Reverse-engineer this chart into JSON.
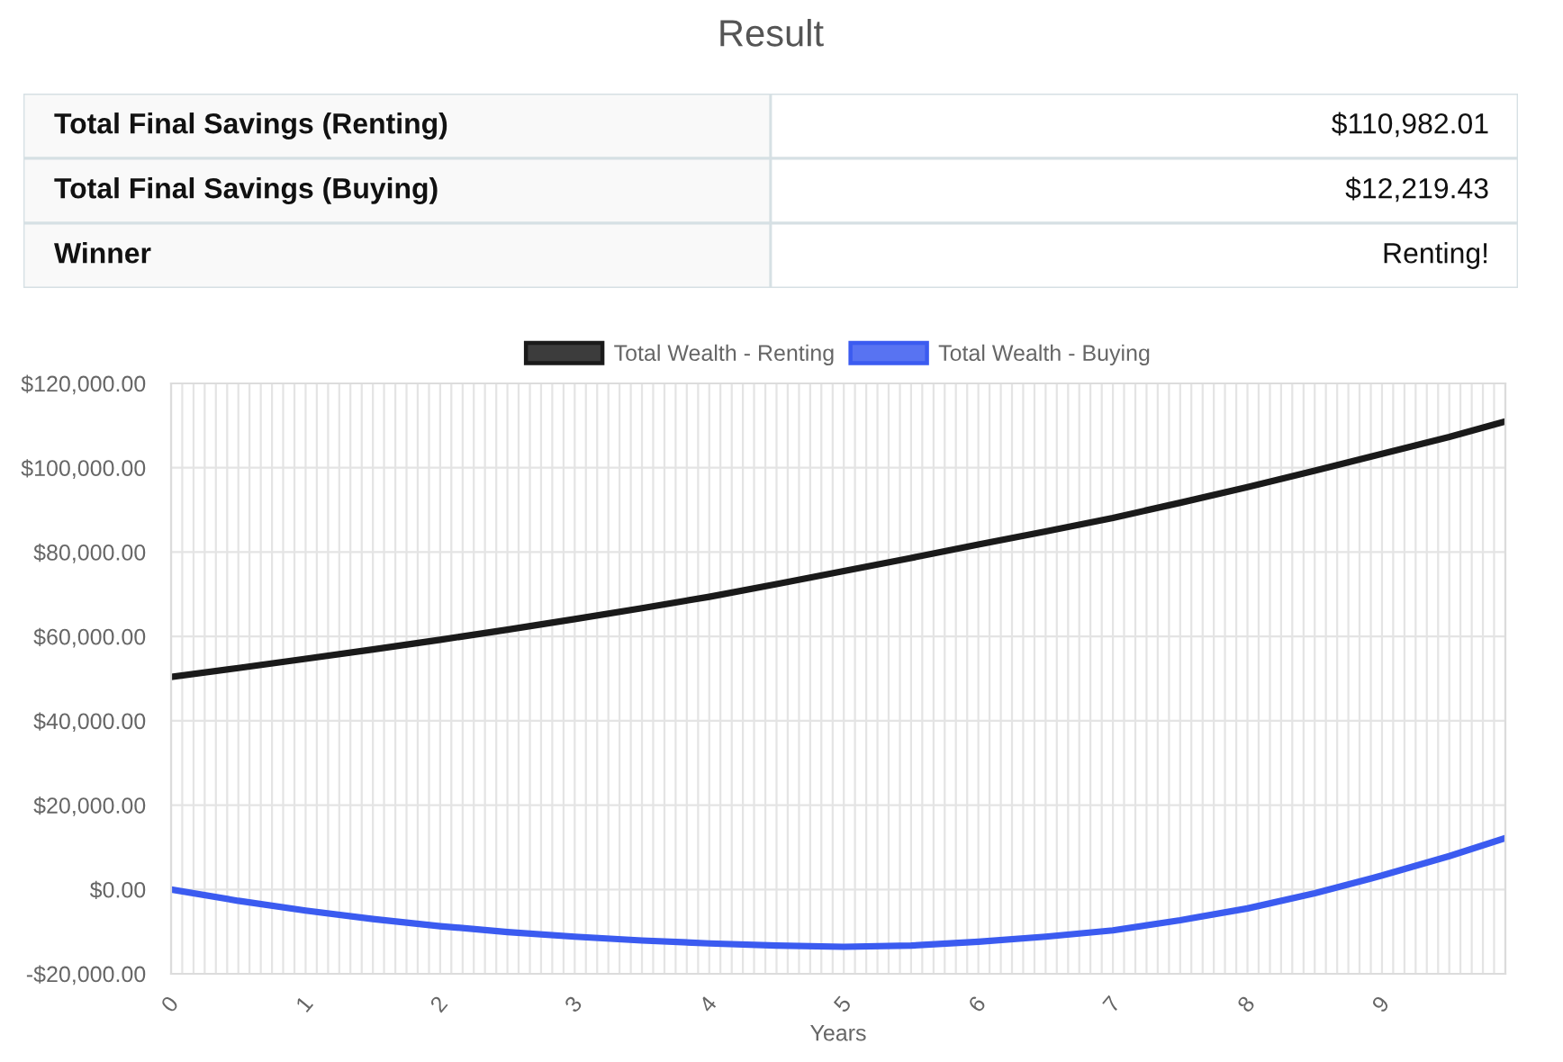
{
  "chart_data": [
    {
      "type": "other",
      "title": "Result",
      "annotations": [
        "Total Final Savings (Renting)",
        "$110,982.01",
        "Total Final Savings (Buying)",
        "$12,219.43",
        "Winner",
        "Renting!"
      ]
    },
    {
      "type": "line",
      "xlabel": "Years",
      "line_style": "solid",
      "grid": true,
      "legend": "top",
      "x": [
        0,
        0.5,
        1,
        1.5,
        2,
        2.5,
        3,
        3.5,
        4,
        4.5,
        5,
        5.5,
        6,
        6.5,
        7,
        7.5,
        8,
        8.5,
        9,
        9.5,
        9.917
      ],
      "series": [
        {
          "name": "Total Wealth - Renting",
          "color": "#1a1a1a",
          "values": [
            50400,
            52500,
            54700,
            56900,
            59200,
            61600,
            64100,
            66700,
            69400,
            72400,
            75500,
            78600,
            81800,
            84900,
            88100,
            91700,
            95400,
            99300,
            103300,
            107300,
            111000
          ]
        },
        {
          "name": "Total Wealth - Buying",
          "color": "#3b5bf0",
          "values": [
            0,
            -2700,
            -5000,
            -7000,
            -8700,
            -10100,
            -11200,
            -12100,
            -12800,
            -13300,
            -13600,
            -13300,
            -12400,
            -11200,
            -9700,
            -7300,
            -4500,
            -900,
            3300,
            7900,
            12200
          ]
        }
      ],
      "xlim": [
        0,
        9.917
      ],
      "ylim": [
        -20000,
        120000
      ],
      "xticks": [
        0,
        {
          "value": 0.083,
          "label": null
        },
        {
          "value": 0.167,
          "label": null
        },
        {
          "value": 0.25,
          "label": null
        },
        {
          "value": 0.333,
          "label": null
        },
        {
          "value": 0.417,
          "label": null
        },
        {
          "value": 0.5,
          "label": null
        },
        {
          "value": 0.583,
          "label": null
        },
        {
          "value": 0.667,
          "label": null
        },
        {
          "value": 0.75,
          "label": null
        },
        {
          "value": 0.833,
          "label": null
        },
        {
          "value": 0.917,
          "label": null
        },
        1,
        {
          "value": 1.083,
          "label": null
        },
        {
          "value": 1.167,
          "label": null
        },
        {
          "value": 1.25,
          "label": null
        },
        {
          "value": 1.333,
          "label": null
        },
        {
          "value": 1.417,
          "label": null
        },
        {
          "value": 1.5,
          "label": null
        },
        {
          "value": 1.583,
          "label": null
        },
        {
          "value": 1.667,
          "label": null
        },
        {
          "value": 1.75,
          "label": null
        },
        {
          "value": 1.833,
          "label": null
        },
        {
          "value": 1.917,
          "label": null
        },
        2,
        {
          "value": 2.083,
          "label": null
        },
        {
          "value": 2.167,
          "label": null
        },
        {
          "value": 2.25,
          "label": null
        },
        {
          "value": 2.333,
          "label": null
        },
        {
          "value": 2.417,
          "label": null
        },
        {
          "value": 2.5,
          "label": null
        },
        {
          "value": 2.583,
          "label": null
        },
        {
          "value": 2.667,
          "label": null
        },
        {
          "value": 2.75,
          "label": null
        },
        {
          "value": 2.833,
          "label": null
        },
        {
          "value": 2.917,
          "label": null
        },
        3,
        {
          "value": 3.083,
          "label": null
        },
        {
          "value": 3.167,
          "label": null
        },
        {
          "value": 3.25,
          "label": null
        },
        {
          "value": 3.333,
          "label": null
        },
        {
          "value": 3.417,
          "label": null
        },
        {
          "value": 3.5,
          "label": null
        },
        {
          "value": 3.583,
          "label": null
        },
        {
          "value": 3.667,
          "label": null
        },
        {
          "value": 3.75,
          "label": null
        },
        {
          "value": 3.833,
          "label": null
        },
        {
          "value": 3.917,
          "label": null
        },
        4,
        {
          "value": 4.083,
          "label": null
        },
        {
          "value": 4.167,
          "label": null
        },
        {
          "value": 4.25,
          "label": null
        },
        {
          "value": 4.333,
          "label": null
        },
        {
          "value": 4.417,
          "label": null
        },
        {
          "value": 4.5,
          "label": null
        },
        {
          "value": 4.583,
          "label": null
        },
        {
          "value": 4.667,
          "label": null
        },
        {
          "value": 4.75,
          "label": null
        },
        {
          "value": 4.833,
          "label": null
        },
        {
          "value": 4.917,
          "label": null
        },
        5,
        {
          "value": 5.083,
          "label": null
        },
        {
          "value": 5.167,
          "label": null
        },
        {
          "value": 5.25,
          "label": null
        },
        {
          "value": 5.333,
          "label": null
        },
        {
          "value": 5.417,
          "label": null
        },
        {
          "value": 5.5,
          "label": null
        },
        {
          "value": 5.583,
          "label": null
        },
        {
          "value": 5.667,
          "label": null
        },
        {
          "value": 5.75,
          "label": null
        },
        {
          "value": 5.833,
          "label": null
        },
        {
          "value": 5.917,
          "label": null
        },
        6,
        {
          "value": 6.083,
          "label": null
        },
        {
          "value": 6.167,
          "label": null
        },
        {
          "value": 6.25,
          "label": null
        },
        {
          "value": 6.333,
          "label": null
        },
        {
          "value": 6.417,
          "label": null
        },
        {
          "value": 6.5,
          "label": null
        },
        {
          "value": 6.583,
          "label": null
        },
        {
          "value": 6.667,
          "label": null
        },
        {
          "value": 6.75,
          "label": null
        },
        {
          "value": 6.833,
          "label": null
        },
        {
          "value": 6.917,
          "label": null
        },
        7,
        {
          "value": 7.083,
          "label": null
        },
        {
          "value": 7.167,
          "label": null
        },
        {
          "value": 7.25,
          "label": null
        },
        {
          "value": 7.333,
          "label": null
        },
        {
          "value": 7.417,
          "label": null
        },
        {
          "value": 7.5,
          "label": null
        },
        {
          "value": 7.583,
          "label": null
        },
        {
          "value": 7.667,
          "label": null
        },
        {
          "value": 7.75,
          "label": null
        },
        {
          "value": 7.833,
          "label": null
        },
        {
          "value": 7.917,
          "label": null
        },
        8,
        {
          "value": 8.083,
          "label": null
        },
        {
          "value": 8.167,
          "label": null
        },
        {
          "value": 8.25,
          "label": null
        },
        {
          "value": 8.333,
          "label": null
        },
        {
          "value": 8.417,
          "label": null
        },
        {
          "value": 8.5,
          "label": null
        },
        {
          "value": 8.583,
          "label": null
        },
        {
          "value": 8.667,
          "label": null
        },
        {
          "value": 8.75,
          "label": null
        },
        {
          "value": 8.833,
          "label": null
        },
        {
          "value": 8.917,
          "label": null
        },
        9,
        {
          "value": 9.083,
          "label": null
        },
        {
          "value": 9.167,
          "label": null
        },
        {
          "value": 9.25,
          "label": null
        },
        {
          "value": 9.333,
          "label": null
        },
        {
          "value": 9.417,
          "label": null
        },
        {
          "value": 9.5,
          "label": null
        },
        {
          "value": 9.583,
          "label": null
        },
        {
          "value": 9.667,
          "label": null
        },
        {
          "value": 9.75,
          "label": null
        },
        {
          "value": 9.833,
          "label": null
        },
        {
          "value": 9.917,
          "label": null
        }
      ],
      "yticks": [
        {
          "value": -20000,
          "label": "-$20,000.00"
        },
        {
          "value": 0,
          "label": "$0.00"
        },
        {
          "value": 20000,
          "label": "$20,000.00"
        },
        {
          "value": 40000,
          "label": "$40,000.00"
        },
        {
          "value": 60000,
          "label": "$60,000.00"
        },
        {
          "value": 80000,
          "label": "$80,000.00"
        },
        {
          "value": 100000,
          "label": "$100,000.00"
        },
        {
          "value": 120000,
          "label": "$120,000.00"
        }
      ]
    }
  ]
}
